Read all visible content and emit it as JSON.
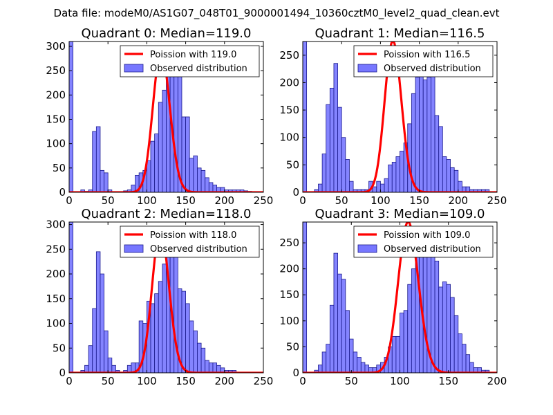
{
  "figure_title": "Data file: modeM0/AS1G07_048T01_9000001494_10360cztM0_level2_quad_clean.evt",
  "colors": {
    "poisson": "#ff0000",
    "bar_fill": "#7777ff",
    "bar_edge": "#1a1a8c"
  },
  "chart_data": [
    {
      "type": "bar",
      "title": "Quadrant 0: Median=119.0",
      "xlim": [
        0,
        250
      ],
      "ylim": [
        0,
        310
      ],
      "xticks": [
        0,
        50,
        100,
        150,
        200,
        250
      ],
      "yticks": [
        0,
        50,
        100,
        150,
        200,
        250,
        300
      ],
      "legend": [
        "Poission with 119.0",
        "Observed distribution"
      ],
      "legend_position": "top-right",
      "poisson_mean": 119.0,
      "poisson_peak": 290,
      "bin_width": 5,
      "bin_start": 0,
      "values": [
        310,
        0,
        0,
        5,
        2,
        5,
        125,
        135,
        45,
        40,
        5,
        0,
        0,
        0,
        3,
        5,
        15,
        35,
        40,
        45,
        65,
        105,
        120,
        185,
        210,
        255,
        280,
        240,
        245,
        155,
        155,
        70,
        75,
        50,
        45,
        30,
        20,
        15,
        10,
        10,
        5,
        5,
        5,
        5,
        5,
        3,
        2,
        0
      ]
    },
    {
      "type": "bar",
      "title": "Quadrant 1: Median=116.5",
      "xlim": [
        0,
        250
      ],
      "ylim": [
        0,
        275
      ],
      "xticks": [
        0,
        50,
        100,
        150,
        200,
        250
      ],
      "yticks": [
        0,
        50,
        100,
        150,
        200,
        250
      ],
      "legend": [
        "Poission with 116.5",
        "Observed distribution"
      ],
      "legend_position": "top-right",
      "poisson_mean": 116.5,
      "poisson_peak": 275,
      "bin_width": 5,
      "bin_start": 0,
      "values": [
        275,
        0,
        0,
        5,
        15,
        70,
        160,
        190,
        235,
        155,
        100,
        60,
        20,
        5,
        5,
        5,
        5,
        20,
        10,
        20,
        15,
        25,
        50,
        55,
        65,
        75,
        90,
        125,
        180,
        210,
        250,
        205,
        210,
        240,
        140,
        120,
        65,
        60,
        45,
        40,
        20,
        10,
        10,
        5,
        5,
        5,
        5,
        5
      ]
    },
    {
      "type": "bar",
      "title": "Quadrant 2: Median=118.0",
      "xlim": [
        0,
        250
      ],
      "ylim": [
        0,
        305
      ],
      "xticks": [
        0,
        50,
        100,
        150,
        200,
        250
      ],
      "yticks": [
        0,
        50,
        100,
        150,
        200,
        250,
        300
      ],
      "legend": [
        "Poission with 118.0",
        "Observed distribution"
      ],
      "legend_position": "top-right",
      "poisson_mean": 118.0,
      "poisson_peak": 290,
      "bin_width": 5,
      "bin_start": 0,
      "values": [
        305,
        0,
        0,
        5,
        15,
        55,
        130,
        245,
        200,
        85,
        30,
        15,
        5,
        0,
        5,
        15,
        20,
        20,
        105,
        100,
        145,
        140,
        160,
        185,
        220,
        255,
        285,
        260,
        170,
        165,
        140,
        105,
        85,
        60,
        50,
        25,
        20,
        20,
        15,
        10,
        5,
        5,
        5,
        0
      ]
    },
    {
      "type": "bar",
      "title": "Quadrant 3: Median=109.0",
      "xlim": [
        0,
        200
      ],
      "ylim": [
        0,
        290
      ],
      "xticks": [
        0,
        50,
        100,
        150,
        200
      ],
      "yticks": [
        0,
        50,
        100,
        150,
        200,
        250
      ],
      "legend": [
        "Poission with 109.0",
        "Observed distribution"
      ],
      "legend_position": "top-right",
      "poisson_mean": 109.0,
      "poisson_peak": 290,
      "bin_width": 4,
      "bin_start": 0,
      "values": [
        290,
        0,
        0,
        5,
        15,
        40,
        55,
        130,
        230,
        190,
        180,
        120,
        65,
        40,
        30,
        20,
        15,
        10,
        10,
        15,
        20,
        30,
        50,
        70,
        70,
        115,
        120,
        170,
        200,
        235,
        245,
        255,
        275,
        230,
        215,
        165,
        175,
        170,
        145,
        110,
        75,
        55,
        35,
        20,
        10,
        10,
        5,
        5,
        0,
        0
      ]
    }
  ]
}
